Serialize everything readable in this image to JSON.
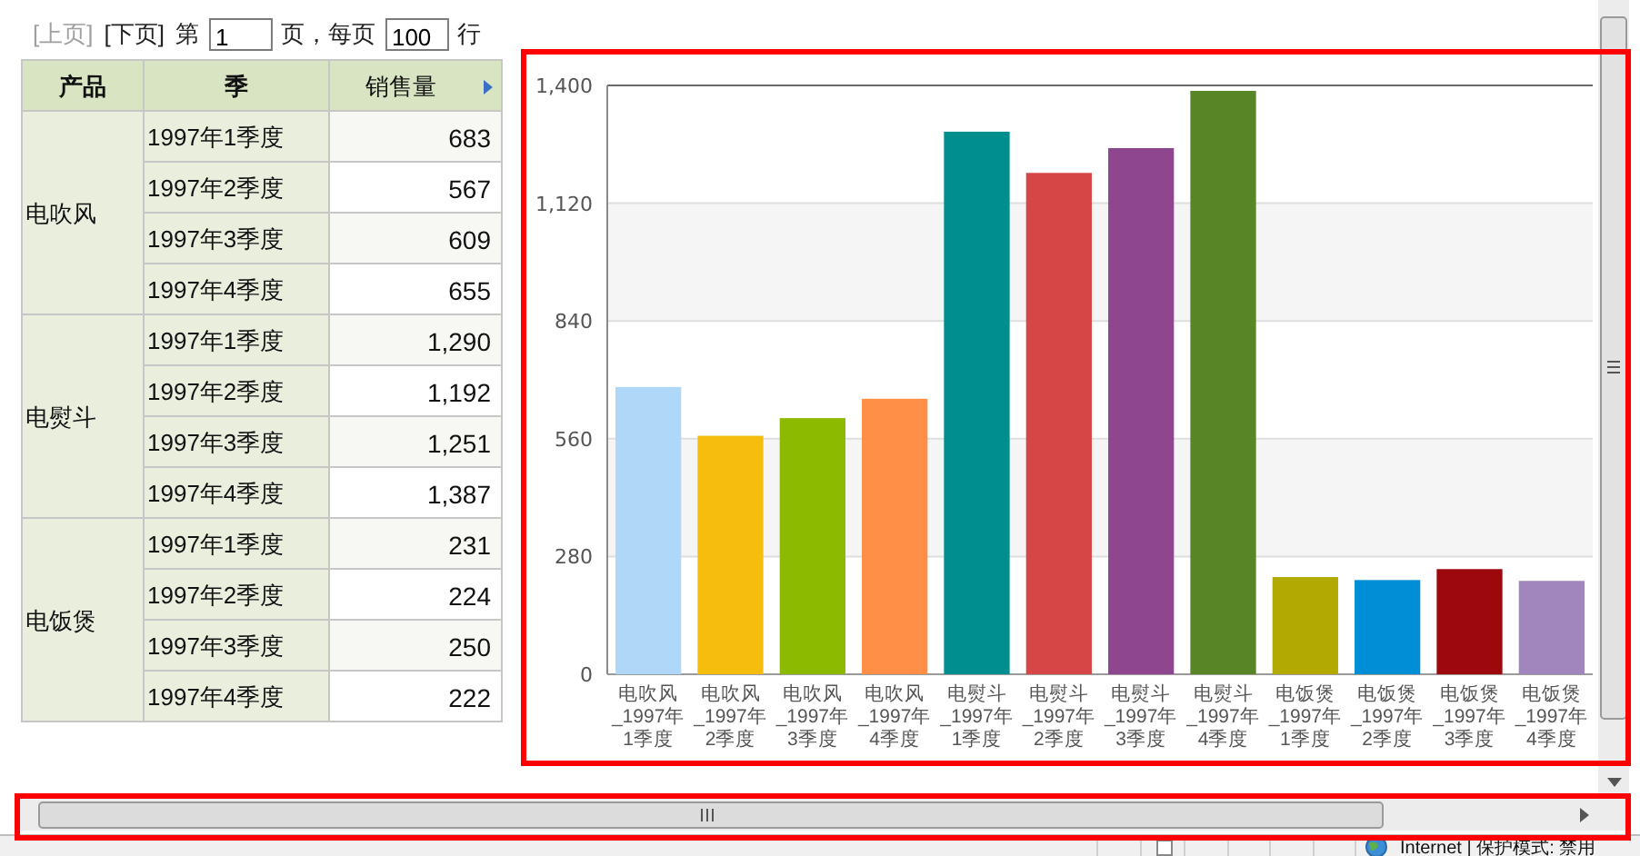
{
  "chart_data": [
    {
      "type": "other",
      "categories": [
        "1997年1季度",
        "1997年2季度",
        "1997年3季度",
        "1997年4季度",
        "1997年1季度",
        "1997年2季度",
        "1997年3季度",
        "1997年4季度",
        "1997年1季度",
        "1997年2季度",
        "1997年3季度",
        "1997年4季度"
      ],
      "y_categories": [
        "电吹风",
        "电熨斗",
        "电饭煲"
      ],
      "value_labels": [
        "683",
        "567",
        "609",
        "655",
        "1,290",
        "1,192",
        "1,251",
        "1,387",
        "231",
        "224",
        "250",
        "222"
      ],
      "annotations": [
        "[上页]",
        "[下页]",
        "第",
        "1",
        "页，每页",
        "100",
        "行",
        "产品",
        "季",
        "销售量"
      ]
    },
    {
      "type": "bar",
      "categories": [
        "电吹风_1997年1季度",
        "电吹风_1997年2季度",
        "电吹风_1997年3季度",
        "电吹风_1997年4季度",
        "电熨斗_1997年1季度",
        "电熨斗_1997年2季度",
        "电熨斗_1997年3季度",
        "电熨斗_1997年4季度",
        "电饭煲_1997年1季度",
        "电饭煲_1997年2季度",
        "电饭煲_1997年3季度",
        "电饭煲_1997年4季度"
      ],
      "values": [
        683,
        567,
        609,
        655,
        1290,
        1192,
        1251,
        1387,
        231,
        224,
        250,
        222
      ],
      "colors": [
        "#afd8f8",
        "#f6bd0f",
        "#8bba00",
        "#ff8e46",
        "#008e8e",
        "#d64646",
        "#8e468e",
        "#588526",
        "#b3aa00",
        "#008ed6",
        "#9d080d",
        "#a186be"
      ],
      "ylim": [
        0,
        1400
      ],
      "yticks": [
        0,
        280,
        560,
        840,
        {
          "value": 1120,
          "label": "1,120"
        },
        {
          "value": 1400,
          "label": "1,400"
        }
      ],
      "grid": "y",
      "annotations": [
        "Internet | 保护模式: 禁用"
      ]
    }
  ]
}
